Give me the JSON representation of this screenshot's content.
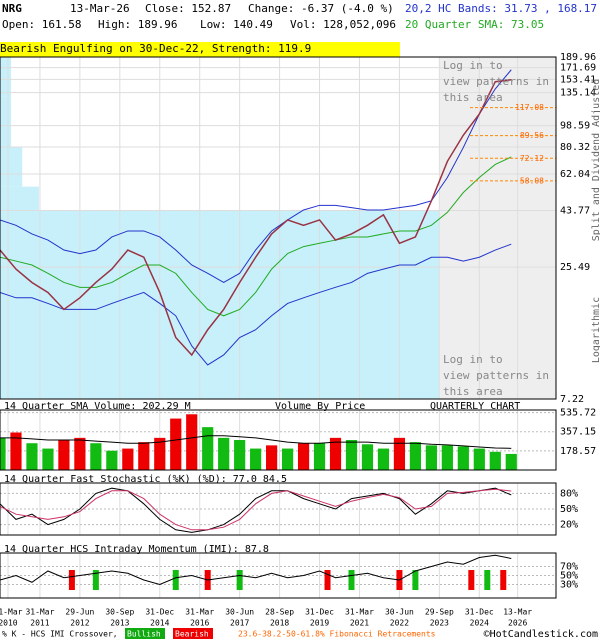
{
  "header": {
    "symbol": "NRG",
    "date": "13-Mar-26",
    "close": "Close: 152.87",
    "change": "Change: -6.37 (-4.0 %)",
    "open": "Open: 161.58",
    "high": "High: 189.96",
    "low": "Low: 140.49",
    "volume": "Vol: 128,052,096",
    "bands": "20,2 HC Bands: 31.73 , 168.17",
    "sma": "20 Quarter SMA: 73.05",
    "pattern": "Bearish Engulfing on 30-Dec-22, Strength: 119.9"
  },
  "notes": {
    "adjusted": "Split and Dividend Adjusted",
    "scale": "Logarithmic",
    "login": "Log in to view patterns in this area",
    "footer_k": "% K - HCS IMI Crossover,",
    "bullish": "Bullish",
    "bearish": "Bearish",
    "fib": "23.6-38.2-50-61.8% Fibonacci Retracements",
    "copyright": "©HotCandlestick.com"
  },
  "chart_data": [
    {
      "type": "line",
      "log": true,
      "xlim": [
        2010,
        2027.4
      ],
      "ylim": [
        7.22,
        189.96
      ],
      "yticks": [
        189.96,
        171.69,
        153.41,
        135.14,
        98.59,
        80.32,
        62.04,
        43.77,
        25.49,
        7.22
      ],
      "xticks": [
        {
          "value": 2010.25,
          "label": [
            "31-Mar",
            "2010"
          ]
        },
        {
          "value": 2011.25,
          "label": [
            "31-Mar",
            "2011"
          ]
        },
        {
          "value": 2012.5,
          "label": [
            "29-Jun",
            "2012"
          ]
        },
        {
          "value": 2013.75,
          "label": [
            "30-Sep",
            "2013"
          ]
        },
        {
          "value": 2015.0,
          "label": [
            "31-Dec",
            "2014"
          ]
        },
        {
          "value": 2016.25,
          "label": [
            "31-Mar",
            "2016"
          ]
        },
        {
          "value": 2017.5,
          "label": [
            "30-Jun",
            "2017"
          ]
        },
        {
          "value": 2018.75,
          "label": [
            "28-Sep",
            "2018"
          ]
        },
        {
          "value": 2020.0,
          "label": [
            "31-Dec",
            "2019"
          ]
        },
        {
          "value": 2021.25,
          "label": [
            "31-Mar",
            "2021"
          ]
        },
        {
          "value": 2022.5,
          "label": [
            "30-Jun",
            "2022"
          ]
        },
        {
          "value": 2023.75,
          "label": [
            "29-Sep",
            "2023"
          ]
        },
        {
          "value": 2025.0,
          "label": [
            "31-Dec",
            "2024"
          ]
        },
        {
          "value": 2026.2,
          "label": [
            "13-Mar",
            "2026"
          ]
        }
      ],
      "x": [
        2010,
        2010.5,
        2011,
        2011.5,
        2012,
        2012.5,
        2013,
        2013.5,
        2014,
        2014.5,
        2015,
        2015.5,
        2016,
        2016.5,
        2017,
        2017.5,
        2018,
        2018.5,
        2019,
        2019.5,
        2020,
        2020.5,
        2021,
        2021.5,
        2022,
        2022.5,
        2023,
        2023.5,
        2024,
        2024.5,
        2025,
        2025.5,
        2026
      ],
      "series": [
        {
          "name": "Upper Band",
          "color": "#2233cc",
          "values": [
            40,
            38,
            35,
            33,
            30,
            29,
            30,
            34,
            36,
            36,
            34,
            30,
            26,
            24,
            22,
            24,
            30,
            36,
            40,
            44,
            46,
            46,
            45,
            44,
            44,
            45,
            46,
            48,
            60,
            80,
            110,
            140,
            168.17
          ]
        },
        {
          "name": "SMA",
          "color": "#22aa22",
          "values": [
            28,
            27,
            26,
            24,
            22,
            21,
            21,
            22,
            24,
            26,
            26,
            24,
            20,
            17,
            16,
            17,
            20,
            25,
            29,
            31,
            32,
            33,
            34,
            34,
            35,
            36,
            36,
            38,
            43,
            52,
            60,
            68,
            73.05
          ]
        },
        {
          "name": "Lower Band",
          "color": "#2233cc",
          "values": [
            20,
            19,
            19,
            18,
            17,
            17,
            17,
            18,
            19,
            20,
            18,
            16,
            12,
            10,
            11,
            13,
            14,
            16,
            18,
            19,
            20,
            21,
            22,
            24,
            25,
            26,
            26,
            28,
            28,
            27,
            28,
            30,
            31.73
          ]
        },
        {
          "name": "Close",
          "color": "#993344",
          "values": [
            30,
            25,
            22,
            20,
            17,
            19,
            22,
            25,
            30,
            28,
            20,
            13,
            11,
            14,
            17,
            22,
            28,
            35,
            40,
            38,
            40,
            33,
            35,
            38,
            42,
            32,
            34,
            48,
            70,
            90,
            110,
            150,
            152.87
          ]
        }
      ],
      "fibonacci": [
        117.08,
        89.56,
        72.12,
        58.08
      ],
      "volume_by_price": {
        "bins": [
          7.22,
          43.77,
          55,
          80,
          130,
          190
        ],
        "values": [
          79,
          7,
          4,
          2,
          2
        ],
        "color": "#c8f0fa"
      }
    },
    {
      "type": "bar",
      "title": "14 Quarter SMA Volume: 202.29 M",
      "label_center": "Volume By Price",
      "label_right": "QUARTERLY CHART",
      "xlim": [
        2010,
        2027.4
      ],
      "ylim": [
        0,
        560
      ],
      "yticks": [
        {
          "value": 535.72,
          "label": "535.72 M"
        },
        {
          "value": 357.15,
          "label": "357.15 M"
        },
        {
          "value": 178.57,
          "label": "178.57 M"
        }
      ],
      "values": [
        300,
        350,
        250,
        200,
        280,
        300,
        250,
        180,
        200,
        260,
        300,
        480,
        520,
        400,
        300,
        280,
        200,
        230,
        200,
        250,
        250,
        300,
        280,
        240,
        200,
        300,
        260,
        230,
        230,
        220,
        200,
        170,
        150
      ],
      "sma": [
        300,
        300,
        290,
        280,
        280,
        280,
        270,
        260,
        250,
        250,
        260,
        280,
        300,
        320,
        320,
        310,
        300,
        280,
        260,
        250,
        250,
        260,
        260,
        260,
        250,
        250,
        250,
        240,
        235,
        225,
        215,
        205,
        202.29
      ]
    },
    {
      "type": "line",
      "title": "14 Quarter Fast Stochastic (%K) (%D): 77.0 84.5",
      "xlim": [
        2010,
        2027.4
      ],
      "ylim": [
        0,
        100
      ],
      "yticks": [
        {
          "value": 80,
          "label": "80%"
        },
        {
          "value": 50,
          "label": "50%"
        },
        {
          "value": 20,
          "label": "20%"
        }
      ],
      "series": [
        {
          "name": "%K",
          "color": "#000000",
          "values": [
            60,
            30,
            40,
            20,
            30,
            50,
            80,
            90,
            85,
            60,
            30,
            10,
            5,
            10,
            20,
            40,
            70,
            85,
            85,
            70,
            60,
            50,
            70,
            75,
            80,
            70,
            40,
            60,
            85,
            80,
            85,
            90,
            77.0
          ]
        },
        {
          "name": "%D",
          "color": "#cc3366",
          "values": [
            55,
            40,
            35,
            30,
            35,
            45,
            70,
            85,
            85,
            70,
            40,
            20,
            10,
            10,
            15,
            30,
            60,
            80,
            85,
            75,
            65,
            55,
            65,
            72,
            78,
            72,
            50,
            55,
            80,
            82,
            85,
            88,
            84.5
          ]
        }
      ]
    },
    {
      "type": "line",
      "title": "14 Quarter HCS Intraday Momentum (IMI): 87.8",
      "xlim": [
        2010,
        2027.4
      ],
      "ylim": [
        0,
        100
      ],
      "yticks": [
        {
          "value": 70,
          "label": "70%"
        },
        {
          "value": 50,
          "label": "50%"
        },
        {
          "value": 30,
          "label": "30%"
        }
      ],
      "series": [
        {
          "name": "IMI",
          "color": "#000000",
          "values": [
            40,
            50,
            35,
            60,
            45,
            50,
            55,
            60,
            55,
            40,
            30,
            45,
            50,
            40,
            45,
            50,
            45,
            55,
            45,
            50,
            60,
            45,
            50,
            55,
            45,
            40,
            60,
            70,
            80,
            75,
            90,
            95,
            87.8
          ]
        }
      ],
      "signals": [
        {
          "x": 2012.25,
          "color": "#ee0000"
        },
        {
          "x": 2013.0,
          "color": "#11bb11"
        },
        {
          "x": 2015.5,
          "color": "#11bb11"
        },
        {
          "x": 2016.5,
          "color": "#ee0000"
        },
        {
          "x": 2017.5,
          "color": "#11bb11"
        },
        {
          "x": 2020.25,
          "color": "#ee0000"
        },
        {
          "x": 2021.0,
          "color": "#11bb11"
        },
        {
          "x": 2022.5,
          "color": "#ee0000"
        },
        {
          "x": 2023.0,
          "color": "#11bb11"
        },
        {
          "x": 2024.75,
          "color": "#ee0000"
        },
        {
          "x": 2025.25,
          "color": "#11bb11"
        },
        {
          "x": 2025.75,
          "color": "#ee0000"
        }
      ]
    }
  ]
}
